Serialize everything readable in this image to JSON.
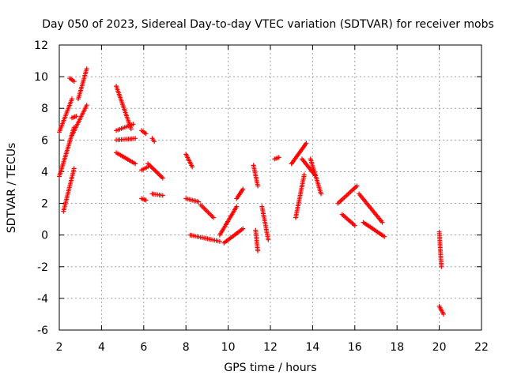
{
  "chart_data": {
    "type": "scatter",
    "title": "Day 050 of 2023, Sidereal Day-to-day VTEC variation (SDTVAR) for receiver mobs",
    "xlabel": "GPS time / hours",
    "ylabel": "SDTVAR / TECUs",
    "xlim": [
      2,
      22
    ],
    "ylim": [
      -6,
      12
    ],
    "x_ticks": [
      2,
      4,
      6,
      8,
      10,
      12,
      14,
      16,
      18,
      20,
      22
    ],
    "y_ticks": [
      -6,
      -4,
      -2,
      0,
      2,
      4,
      6,
      8,
      10,
      12
    ],
    "x_tick_labels": [
      "2",
      "4",
      "6",
      "8",
      "10",
      "12",
      "14",
      "16",
      "18",
      "20",
      "22"
    ],
    "y_tick_labels": [
      "-6",
      "-4",
      "-2",
      "0",
      "2",
      "4",
      "6",
      "8",
      "10",
      "12"
    ],
    "grid": true,
    "marker": "plus",
    "series_color": "#ff0000",
    "segments": [
      {
        "name": "s01",
        "x": [
          2.0,
          2.6
        ],
        "y": [
          6.5,
          8.6
        ]
      },
      {
        "name": "s02",
        "x": [
          2.0,
          2.7
        ],
        "y": [
          3.7,
          6.8
        ]
      },
      {
        "name": "s03",
        "x": [
          2.2,
          2.7
        ],
        "y": [
          1.5,
          4.2
        ]
      },
      {
        "name": "s04",
        "x": [
          2.6,
          3.3
        ],
        "y": [
          6.3,
          8.2
        ]
      },
      {
        "name": "s05",
        "x": [
          2.9,
          3.3
        ],
        "y": [
          8.6,
          10.5
        ]
      },
      {
        "name": "s06",
        "x": [
          2.6,
          2.8
        ],
        "y": [
          7.4,
          7.5
        ]
      },
      {
        "name": "s07",
        "x": [
          2.5,
          2.7
        ],
        "y": [
          9.9,
          9.7
        ]
      },
      {
        "name": "s08",
        "x": [
          4.7,
          5.4
        ],
        "y": [
          9.4,
          6.7
        ]
      },
      {
        "name": "s09",
        "x": [
          4.7,
          5.5
        ],
        "y": [
          6.6,
          7.0
        ]
      },
      {
        "name": "s10",
        "x": [
          4.7,
          5.6
        ],
        "y": [
          6.0,
          6.1
        ]
      },
      {
        "name": "s11",
        "x": [
          4.7,
          5.6
        ],
        "y": [
          5.2,
          4.5
        ]
      },
      {
        "name": "s12",
        "x": [
          5.9,
          6.2
        ],
        "y": [
          4.1,
          4.3
        ]
      },
      {
        "name": "s13",
        "x": [
          5.9,
          6.1
        ],
        "y": [
          6.6,
          6.4
        ]
      },
      {
        "name": "s14",
        "x": [
          6.2,
          6.9
        ],
        "y": [
          4.5,
          3.6
        ]
      },
      {
        "name": "s15",
        "x": [
          6.4,
          6.9
        ],
        "y": [
          2.6,
          2.5
        ]
      },
      {
        "name": "s16",
        "x": [
          5.9,
          6.1
        ],
        "y": [
          2.3,
          2.2
        ]
      },
      {
        "name": "s17",
        "x": [
          6.4,
          6.5
        ],
        "y": [
          6.1,
          5.9
        ]
      },
      {
        "name": "s18",
        "x": [
          8.0,
          8.3
        ],
        "y": [
          5.1,
          4.3
        ]
      },
      {
        "name": "s19",
        "x": [
          8.0,
          8.6
        ],
        "y": [
          2.3,
          2.1
        ]
      },
      {
        "name": "s20",
        "x": [
          8.7,
          9.3
        ],
        "y": [
          1.9,
          1.1
        ]
      },
      {
        "name": "s21",
        "x": [
          8.2,
          9.6
        ],
        "y": [
          0.0,
          -0.4
        ]
      },
      {
        "name": "s22",
        "x": [
          9.6,
          10.4
        ],
        "y": [
          0.0,
          1.8
        ]
      },
      {
        "name": "s23",
        "x": [
          10.4,
          10.7
        ],
        "y": [
          2.3,
          2.9
        ]
      },
      {
        "name": "s24",
        "x": [
          9.8,
          10.7
        ],
        "y": [
          -0.5,
          0.4
        ]
      },
      {
        "name": "s25",
        "x": [
          11.2,
          11.4
        ],
        "y": [
          4.4,
          3.1
        ]
      },
      {
        "name": "s26",
        "x": [
          11.6,
          11.9
        ],
        "y": [
          1.8,
          -0.3
        ]
      },
      {
        "name": "s27",
        "x": [
          11.3,
          11.4
        ],
        "y": [
          0.3,
          -1.0
        ]
      },
      {
        "name": "s28",
        "x": [
          12.2,
          12.4
        ],
        "y": [
          4.8,
          4.9
        ]
      },
      {
        "name": "s29",
        "x": [
          13.0,
          13.7
        ],
        "y": [
          4.5,
          5.8
        ]
      },
      {
        "name": "s30",
        "x": [
          13.2,
          13.6
        ],
        "y": [
          1.1,
          3.8
        ]
      },
      {
        "name": "s31",
        "x": [
          13.5,
          14.1
        ],
        "y": [
          4.8,
          3.8
        ]
      },
      {
        "name": "s32",
        "x": [
          13.9,
          14.4
        ],
        "y": [
          4.8,
          2.6
        ]
      },
      {
        "name": "s33",
        "x": [
          15.2,
          16.1
        ],
        "y": [
          2.0,
          3.1
        ]
      },
      {
        "name": "s34",
        "x": [
          15.4,
          16.0
        ],
        "y": [
          1.3,
          0.6
        ]
      },
      {
        "name": "s35",
        "x": [
          16.2,
          17.3
        ],
        "y": [
          2.6,
          0.8
        ]
      },
      {
        "name": "s36",
        "x": [
          16.4,
          17.4
        ],
        "y": [
          0.8,
          -0.1
        ]
      },
      {
        "name": "s37",
        "x": [
          20.0,
          20.1
        ],
        "y": [
          0.2,
          -2.0
        ]
      },
      {
        "name": "s38",
        "x": [
          20.0,
          20.2
        ],
        "y": [
          -4.5,
          -5.0
        ]
      }
    ]
  }
}
